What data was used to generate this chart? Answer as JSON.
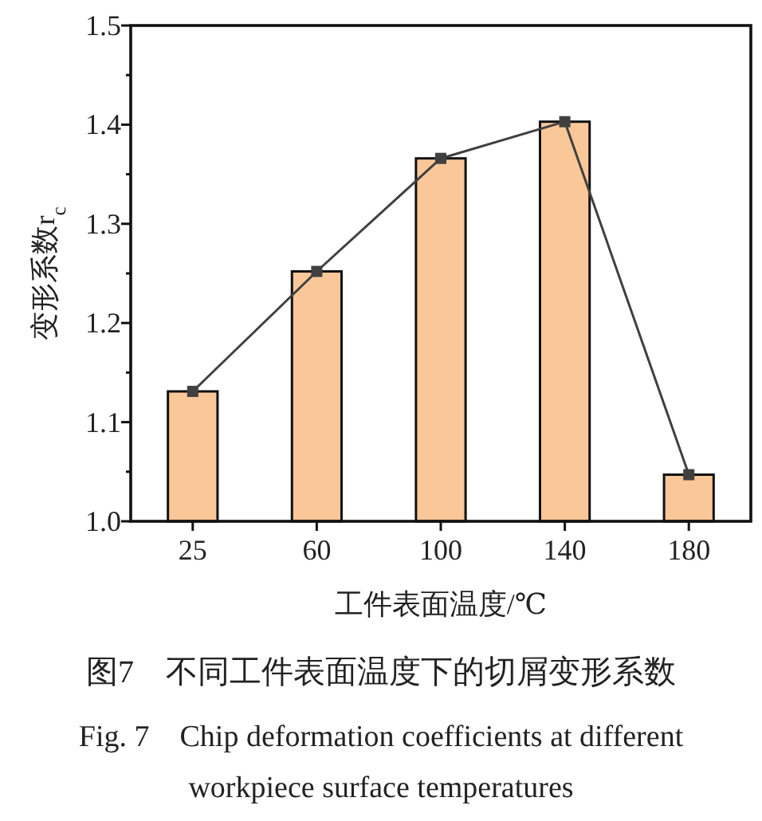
{
  "chart_data": {
    "type": "bar",
    "title": "图7　不同工件表面温度下的切屑变形系数",
    "subtitle": "Fig. 7　Chip deformation coefficients at different workpiece surface temperatures",
    "xlabel": "工件表面温度/℃",
    "ylabel": "变形系数r$_{c}$",
    "categories": [
      "25",
      "60",
      "100",
      "140",
      "180"
    ],
    "series": [
      {
        "color": "#fac898",
        "values": [
          1.131,
          1.252,
          1.366,
          1.403,
          1.047
        ]
      },
      {
        "type": "line",
        "color": "#404040",
        "values": [
          1.131,
          1.252,
          1.366,
          1.403,
          1.047
        ]
      }
    ],
    "marker": "square",
    "line_style": "solid",
    "grid": false,
    "ylim": [
      1.0,
      1.5
    ],
    "yticks": [
      {
        "value": 1.0,
        "label": "1.0"
      },
      {
        "value": 1.05,
        "label": null
      },
      {
        "value": 1.1,
        "label": "1.1"
      },
      {
        "value": 1.15,
        "label": null
      },
      {
        "value": 1.2,
        "label": "1.2"
      },
      {
        "value": 1.25,
        "label": null
      },
      {
        "value": 1.3,
        "label": "1.3"
      },
      {
        "value": 1.35,
        "label": null
      },
      {
        "value": 1.4,
        "label": "1.4"
      },
      {
        "value": 1.45,
        "label": null
      },
      {
        "value": 1.5,
        "label": "1.5"
      }
    ]
  }
}
